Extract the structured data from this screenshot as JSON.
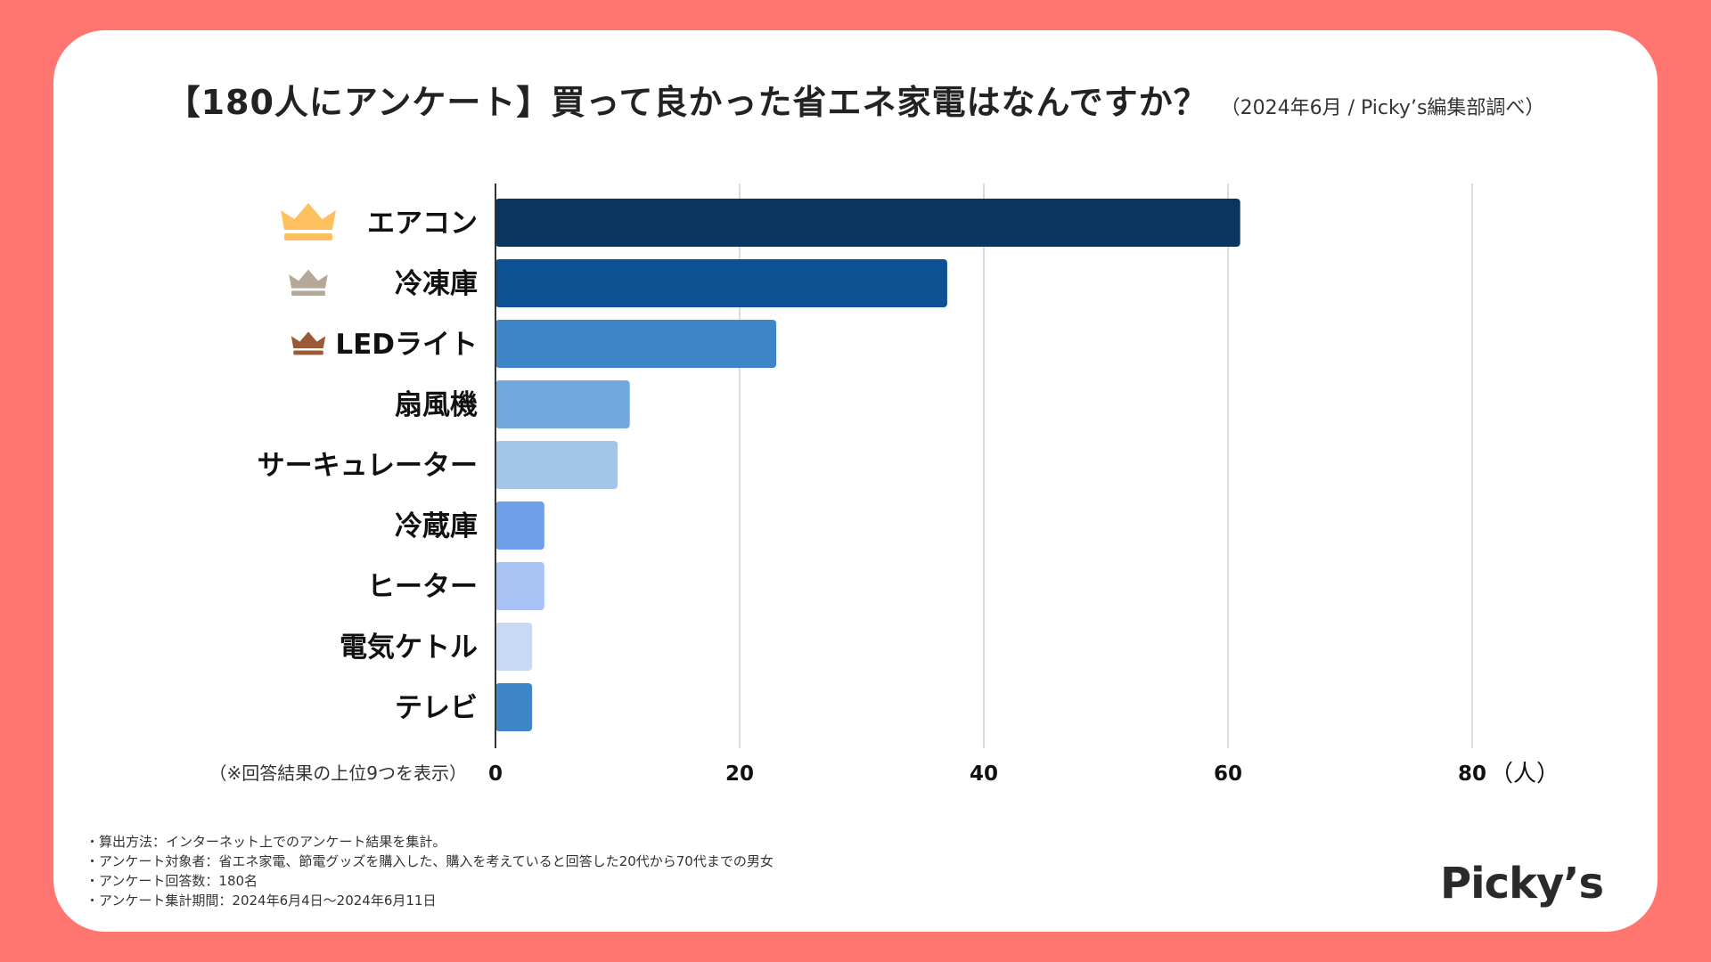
{
  "title": "【180人にアンケート】買って良かった省エネ家電はなんですか？",
  "subtitle": "（2024年6月 / Picky’s編集部調べ）",
  "chart_data": {
    "type": "bar",
    "orientation": "horizontal",
    "categories": [
      "エアコン",
      "冷凍庫",
      "LEDライト",
      "扇風機",
      "サーキュレーター",
      "冷蔵庫",
      "ヒーター",
      "電気ケトル",
      "テレビ"
    ],
    "values": [
      61,
      37,
      23,
      11,
      10,
      4,
      4,
      3,
      3
    ],
    "colors": [
      "#0a355f",
      "#0e5193",
      "#3f86c8",
      "#72a8db",
      "#a3c5e8",
      "#6f9fe8",
      "#a7c2f3",
      "#c8d9f6",
      "#3f86c8"
    ],
    "crown_colors": [
      "#ffc160",
      "#b5a898",
      "#9b5a35"
    ],
    "xlim": [
      0,
      80
    ],
    "xticks": [
      0,
      20,
      40,
      60,
      80
    ],
    "xticklabels": [
      "0",
      "20",
      "40",
      "60",
      "80"
    ],
    "unit_label": "（人）",
    "note_left": "（※回答結果の上位9つを表示）",
    "grid": true
  },
  "notes": [
    "・算出方法：インターネット上でのアンケート結果を集計。",
    "・アンケート対象者：省エネ家電、節電グッズを購入した、購入を考えていると回答した20代から70代までの男女",
    "・アンケート回答数：180名",
    "・アンケート集計期間：2024年6月4日〜2024年6月11日"
  ],
  "logo": "Picky’s"
}
